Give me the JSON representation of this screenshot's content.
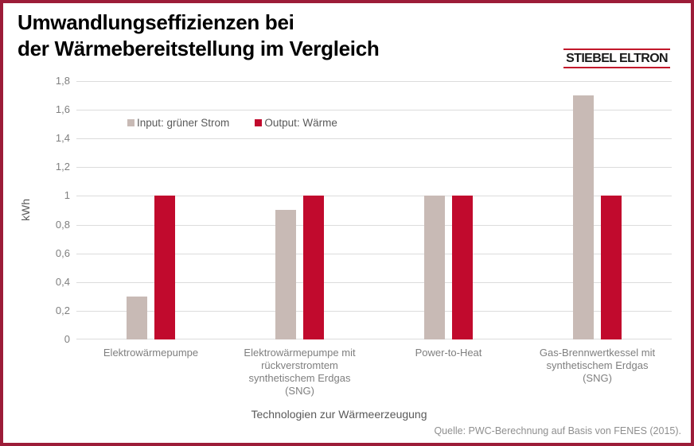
{
  "title": {
    "line1": "Umwandlungseffizienzen bei",
    "line2": "der Wärmebereitstellung im Vergleich"
  },
  "logo": {
    "text": "STIEBEL ELTRON"
  },
  "source": "Quelle: PWC-Berechnung auf Basis von FENES (2015).",
  "colors": {
    "frame_border": "#9c1c38",
    "input_bar": "#c8bab5",
    "output_bar": "#c10a2d",
    "gridline": "#dcdcdc",
    "logo_line": "#c2182b"
  },
  "chart_data": {
    "type": "bar",
    "title": "Umwandlungseffizienzen bei der Wärmebereitstellung im Vergleich",
    "categories": [
      "Elektrowärmepumpe",
      "Elektrowärmepumpe mit\nrückverstromtem\nsynthetischem Erdgas\n(SNG)",
      "Power-to-Heat",
      "Gas-Brennwertkessel mit\nsynthetischem Erdgas\n(SNG)"
    ],
    "series": [
      {
        "name": "Input: grüner Strom",
        "color": "#c8bab5",
        "values": [
          0.3,
          0.9,
          1.0,
          1.7
        ]
      },
      {
        "name": "Output: Wärme",
        "color": "#c10a2d",
        "values": [
          1.0,
          1.0,
          1.0,
          1.0
        ]
      }
    ],
    "xlabel": "Technologien zur Wärmeerzeugung",
    "ylabel": "kWh",
    "ylim": [
      0,
      1.8
    ],
    "ytick_step": 0.2,
    "ytick_labels": [
      "0",
      "0,2",
      "0,4",
      "0,6",
      "0,8",
      "1",
      "1,2",
      "1,4",
      "1,6",
      "1,8"
    ],
    "grid": true,
    "legend_position": "top-left-inside"
  }
}
